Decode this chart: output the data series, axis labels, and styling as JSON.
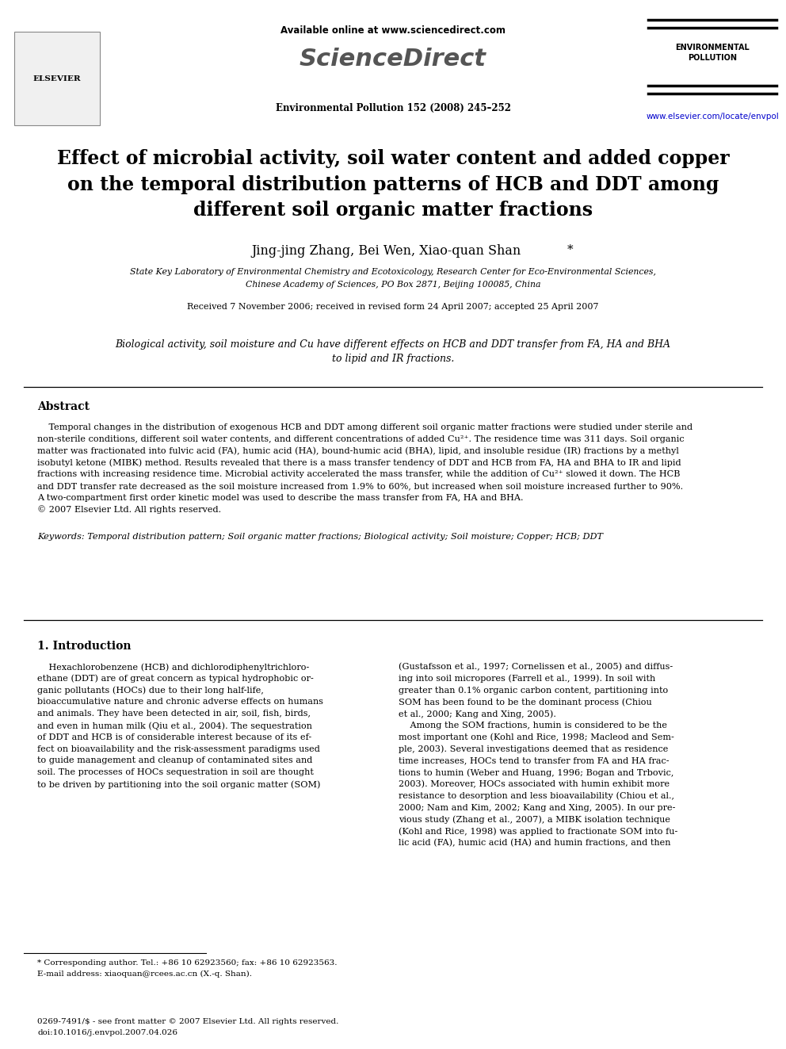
{
  "bg_color": "#ffffff",
  "header": {
    "available_online": "Available online at www.sciencedirect.com",
    "sciencedirect": "ScienceDirect",
    "journal_info": "Environmental Pollution 152 (2008) 245–252",
    "journal_name_line1": "ENVIRONMENTAL",
    "journal_name_line2": "POLLUTION",
    "url": "www.elsevier.com/locate/envpol",
    "elsevier": "ELSEVIER"
  },
  "title": "Effect of microbial activity, soil water content and added copper\non the temporal distribution patterns of HCB and DDT among\ndifferent soil organic matter fractions",
  "authors": "Jing-jing Zhang, Bei Wen, Xiao-quan Shan",
  "authors_star": "*",
  "affiliation_line1": "State Key Laboratory of Environmental Chemistry and Ecotoxicology, Research Center for Eco-Environmental Sciences,",
  "affiliation_line2": "Chinese Academy of Sciences, PO Box 2871, Beijing 100085, China",
  "received": "Received 7 November 2006; received in revised form 24 April 2007; accepted 25 April 2007",
  "graphical_abstract_line1": "Biological activity, soil moisture and Cu have different effects on HCB and DDT transfer from FA, HA and BHA",
  "graphical_abstract_line2": "to lipid and IR fractions.",
  "abstract_title": "Abstract",
  "abstract_lines": [
    "    Temporal changes in the distribution of exogenous HCB and DDT among different soil organic matter fractions were studied under sterile and",
    "non-sterile conditions, different soil water contents, and different concentrations of added Cu²⁺. The residence time was 311 days. Soil organic",
    "matter was fractionated into fulvic acid (FA), humic acid (HA), bound-humic acid (BHA), lipid, and insoluble residue (IR) fractions by a methyl",
    "isobutyl ketone (MIBK) method. Results revealed that there is a mass transfer tendency of DDT and HCB from FA, HA and BHA to IR and lipid",
    "fractions with increasing residence time. Microbial activity accelerated the mass transfer, while the addition of Cu²⁺ slowed it down. The HCB",
    "and DDT transfer rate decreased as the soil moisture increased from 1.9% to 60%, but increased when soil moisture increased further to 90%.",
    "A two-compartment first order kinetic model was used to describe the mass transfer from FA, HA and BHA.",
    "© 2007 Elsevier Ltd. All rights reserved."
  ],
  "keywords": "Keywords: Temporal distribution pattern; Soil organic matter fractions; Biological activity; Soil moisture; Copper; HCB; DDT",
  "intro_title": "1. Introduction",
  "intro_col1_lines": [
    "    Hexachlorobenzene (HCB) and dichlorodiphenyltrichloro-",
    "ethane (DDT) are of great concern as typical hydrophobic or-",
    "ganic pollutants (HOCs) due to their long half-life,",
    "bioaccumulative nature and chronic adverse effects on humans",
    "and animals. They have been detected in air, soil, fish, birds,",
    "and even in human milk (Qiu et al., 2004). The sequestration",
    "of DDT and HCB is of considerable interest because of its ef-",
    "fect on bioavailability and the risk-assessment paradigms used",
    "to guide management and cleanup of contaminated sites and",
    "soil. The processes of HOCs sequestration in soil are thought",
    "to be driven by partitioning into the soil organic matter (SOM)"
  ],
  "intro_col2_lines": [
    "(Gustafsson et al., 1997; Cornelissen et al., 2005) and diffus-",
    "ing into soil micropores (Farrell et al., 1999). In soil with",
    "greater than 0.1% organic carbon content, partitioning into",
    "SOM has been found to be the dominant process (Chiou",
    "et al., 2000; Kang and Xing, 2005).",
    "    Among the SOM fractions, humin is considered to be the",
    "most important one (Kohl and Rice, 1998; Macleod and Sem-",
    "ple, 2003). Several investigations deemed that as residence",
    "time increases, HOCs tend to transfer from FA and HA frac-",
    "tions to humin (Weber and Huang, 1996; Bogan and Trbovic,",
    "2003). Moreover, HOCs associated with humin exhibit more",
    "resistance to desorption and less bioavailability (Chiou et al.,",
    "2000; Nam and Kim, 2002; Kang and Xing, 2005). In our pre-",
    "vious study (Zhang et al., 2007), a MIBK isolation technique",
    "(Kohl and Rice, 1998) was applied to fractionate SOM into fu-",
    "lic acid (FA), humic acid (HA) and humin fractions, and then"
  ],
  "footnote1": "* Corresponding author. Tel.: +86 10 62923560; fax: +86 10 62923563.",
  "footnote2": "E-mail address: xiaoquan@rcees.ac.cn (X.-q. Shan).",
  "footer1": "0269-7491/$ - see front matter © 2007 Elsevier Ltd. All rights reserved.",
  "footer2": "doi:10.1016/j.envpol.2007.04.026"
}
